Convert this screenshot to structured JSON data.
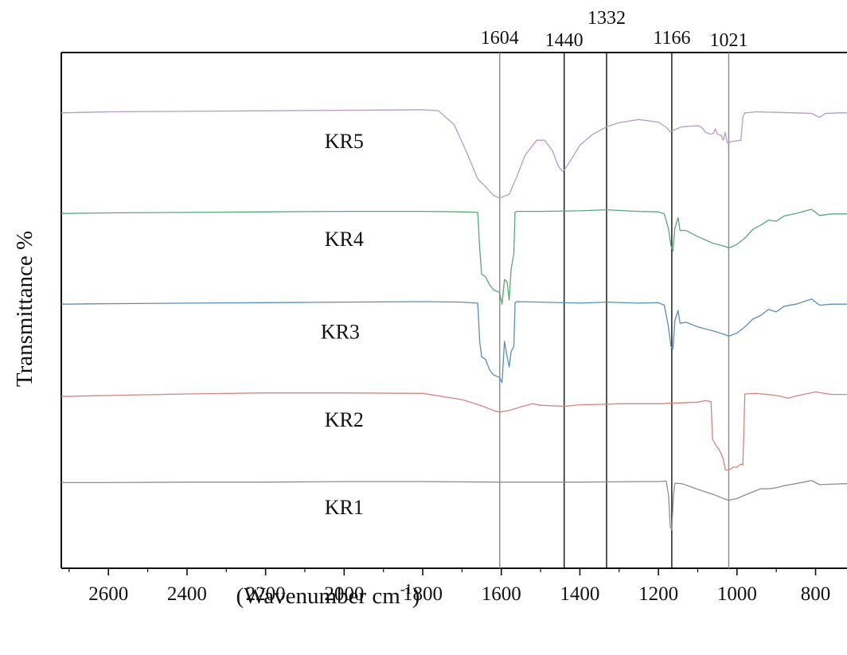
{
  "chart_data": {
    "type": "line",
    "title": "",
    "xlabel": "(Wavenumber cm",
    "xlabel_sup": "-1",
    "xlabel_close": ")",
    "ylabel": "Transmittance %",
    "xlim": [
      2720,
      720
    ],
    "x_reversed": true,
    "x_ticks": [
      2600,
      2400,
      2200,
      2000,
      1800,
      1600,
      1400,
      1200,
      1000,
      800
    ],
    "grid": false,
    "legend": "none",
    "y_units": "relative transmittance (offset stack, no y ticks)",
    "ylim": [
      0,
      100
    ],
    "reference_lines": [
      {
        "x": 1604,
        "label": "1604",
        "color": "#8a8a8a"
      },
      {
        "x": 1440,
        "label": "1440",
        "color": "#111111"
      },
      {
        "x": 1332,
        "label": "1332",
        "color": "#111111"
      },
      {
        "x": 1166,
        "label": "1166",
        "color": "#111111"
      },
      {
        "x": 1021,
        "label": "1021",
        "color": "#8a8a8a"
      }
    ],
    "series": [
      {
        "name": "KR5",
        "color": "#b69ac7",
        "points": [
          [
            2720,
            88.3
          ],
          [
            2600,
            88.5
          ],
          [
            2400,
            88.6
          ],
          [
            2200,
            88.7
          ],
          [
            2000,
            88.8
          ],
          [
            1800,
            88.9
          ],
          [
            1760,
            88.7
          ],
          [
            1720,
            86
          ],
          [
            1690,
            81
          ],
          [
            1660,
            75.5
          ],
          [
            1640,
            74
          ],
          [
            1620,
            72.3
          ],
          [
            1604,
            71.8
          ],
          [
            1580,
            72.5
          ],
          [
            1560,
            76
          ],
          [
            1540,
            80
          ],
          [
            1510,
            83
          ],
          [
            1490,
            83
          ],
          [
            1470,
            81
          ],
          [
            1455,
            78
          ],
          [
            1445,
            77
          ],
          [
            1440,
            77.2
          ],
          [
            1420,
            79.5
          ],
          [
            1400,
            82
          ],
          [
            1370,
            84
          ],
          [
            1332,
            85.6
          ],
          [
            1300,
            86.4
          ],
          [
            1250,
            87
          ],
          [
            1200,
            86.5
          ],
          [
            1180,
            85.5
          ],
          [
            1170,
            84.6
          ],
          [
            1160,
            85
          ],
          [
            1140,
            85.6
          ],
          [
            1100,
            85.8
          ],
          [
            1090,
            85.5
          ],
          [
            1080,
            84.5
          ],
          [
            1068,
            84.2
          ],
          [
            1060,
            84.3
          ],
          [
            1055,
            85.2
          ],
          [
            1050,
            84.2
          ],
          [
            1040,
            83.9
          ],
          [
            1035,
            83
          ],
          [
            1030,
            84.5
          ],
          [
            1025,
            82.5
          ],
          [
            1010,
            82.8
          ],
          [
            990,
            83
          ],
          [
            985,
            87.5
          ],
          [
            980,
            88.3
          ],
          [
            950,
            88.5
          ],
          [
            900,
            88.4
          ],
          [
            850,
            88.3
          ],
          [
            810,
            88.2
          ],
          [
            790,
            87.4
          ],
          [
            775,
            88.2
          ],
          [
            740,
            88.3
          ],
          [
            720,
            88.3
          ]
        ]
      },
      {
        "name": "KR4",
        "color": "#5aa77a",
        "points": [
          [
            2720,
            68.8
          ],
          [
            2600,
            68.9
          ],
          [
            2400,
            69
          ],
          [
            2200,
            69.1
          ],
          [
            2000,
            69.2
          ],
          [
            1800,
            69.2
          ],
          [
            1700,
            69.1
          ],
          [
            1660,
            69
          ],
          [
            1655,
            62
          ],
          [
            1650,
            57
          ],
          [
            1640,
            56.5
          ],
          [
            1630,
            55
          ],
          [
            1620,
            54
          ],
          [
            1605,
            53.5
          ],
          [
            1598,
            51.2
          ],
          [
            1592,
            56
          ],
          [
            1585,
            55.5
          ],
          [
            1580,
            52
          ],
          [
            1575,
            58
          ],
          [
            1568,
            61
          ],
          [
            1565,
            69
          ],
          [
            1560,
            69.2
          ],
          [
            1500,
            69.2
          ],
          [
            1400,
            69.3
          ],
          [
            1332,
            69.5
          ],
          [
            1250,
            69.2
          ],
          [
            1200,
            69.1
          ],
          [
            1185,
            68.7
          ],
          [
            1175,
            66
          ],
          [
            1168,
            62.5
          ],
          [
            1163,
            61.5
          ],
          [
            1158,
            66
          ],
          [
            1150,
            68
          ],
          [
            1145,
            65.5
          ],
          [
            1130,
            65.5
          ],
          [
            1100,
            64.3
          ],
          [
            1060,
            63
          ],
          [
            1030,
            62.4
          ],
          [
            1021,
            62.1
          ],
          [
            1000,
            62.8
          ],
          [
            980,
            64
          ],
          [
            960,
            65.7
          ],
          [
            940,
            66.5
          ],
          [
            920,
            67.5
          ],
          [
            900,
            67.3
          ],
          [
            880,
            68.3
          ],
          [
            850,
            68.8
          ],
          [
            810,
            69.6
          ],
          [
            790,
            68.4
          ],
          [
            760,
            68.7
          ],
          [
            720,
            68.7
          ]
        ]
      },
      {
        "name": "KR3",
        "color": "#5b8db8",
        "points": [
          [
            2720,
            51.2
          ],
          [
            2600,
            51.3
          ],
          [
            2400,
            51.4
          ],
          [
            2200,
            51.5
          ],
          [
            2000,
            51.6
          ],
          [
            1800,
            51.7
          ],
          [
            1700,
            51.6
          ],
          [
            1660,
            51.4
          ],
          [
            1655,
            44
          ],
          [
            1650,
            41
          ],
          [
            1640,
            40.5
          ],
          [
            1630,
            38.5
          ],
          [
            1620,
            37.5
          ],
          [
            1605,
            37
          ],
          [
            1598,
            36
          ],
          [
            1592,
            44
          ],
          [
            1585,
            41
          ],
          [
            1580,
            39
          ],
          [
            1575,
            42
          ],
          [
            1568,
            43
          ],
          [
            1565,
            51.5
          ],
          [
            1560,
            51.7
          ],
          [
            1500,
            51.6
          ],
          [
            1400,
            51.4
          ],
          [
            1332,
            51.6
          ],
          [
            1250,
            51.4
          ],
          [
            1200,
            51.5
          ],
          [
            1185,
            51
          ],
          [
            1175,
            47
          ],
          [
            1168,
            43
          ],
          [
            1163,
            42.5
          ],
          [
            1158,
            48
          ],
          [
            1150,
            50
          ],
          [
            1145,
            47.5
          ],
          [
            1130,
            47.7
          ],
          [
            1100,
            46.8
          ],
          [
            1060,
            46
          ],
          [
            1030,
            45.3
          ],
          [
            1021,
            45
          ],
          [
            1000,
            45.6
          ],
          [
            980,
            46.8
          ],
          [
            960,
            48.3
          ],
          [
            940,
            49
          ],
          [
            920,
            50.2
          ],
          [
            900,
            49.7
          ],
          [
            880,
            50.8
          ],
          [
            850,
            51.2
          ],
          [
            810,
            52.2
          ],
          [
            790,
            51
          ],
          [
            760,
            51.2
          ],
          [
            720,
            51.2
          ]
        ]
      },
      {
        "name": "KR2",
        "color": "#d4857c",
        "points": [
          [
            2720,
            33.3
          ],
          [
            2600,
            33.5
          ],
          [
            2400,
            33.8
          ],
          [
            2200,
            34
          ],
          [
            2000,
            34
          ],
          [
            1800,
            33.9
          ],
          [
            1700,
            32.7
          ],
          [
            1650,
            31.5
          ],
          [
            1620,
            30.6
          ],
          [
            1604,
            30.3
          ],
          [
            1580,
            30.6
          ],
          [
            1550,
            31.3
          ],
          [
            1520,
            31.9
          ],
          [
            1500,
            31.6
          ],
          [
            1440,
            31.4
          ],
          [
            1400,
            31.7
          ],
          [
            1332,
            31.8
          ],
          [
            1300,
            31.9
          ],
          [
            1200,
            31.9
          ],
          [
            1100,
            32.2
          ],
          [
            1080,
            32.5
          ],
          [
            1066,
            32.3
          ],
          [
            1062,
            25
          ],
          [
            1055,
            24
          ],
          [
            1048,
            23.3
          ],
          [
            1040,
            22.2
          ],
          [
            1035,
            21.2
          ],
          [
            1030,
            19.1
          ],
          [
            1021,
            19
          ],
          [
            1010,
            19.6
          ],
          [
            1000,
            19.6
          ],
          [
            990,
            20.2
          ],
          [
            985,
            20
          ],
          [
            980,
            33.8
          ],
          [
            950,
            33.9
          ],
          [
            900,
            33.5
          ],
          [
            870,
            33
          ],
          [
            850,
            33.4
          ],
          [
            800,
            34.2
          ],
          [
            760,
            33.7
          ],
          [
            720,
            33.7
          ]
        ]
      },
      {
        "name": "KR1",
        "color": "#8e8e8e",
        "points": [
          [
            2720,
            16.6
          ],
          [
            2600,
            16.6
          ],
          [
            2400,
            16.7
          ],
          [
            2200,
            16.7
          ],
          [
            2000,
            16.8
          ],
          [
            1800,
            16.8
          ],
          [
            1600,
            16.7
          ],
          [
            1400,
            16.7
          ],
          [
            1250,
            16.8
          ],
          [
            1200,
            16.8
          ],
          [
            1180,
            16.9
          ],
          [
            1174,
            14
          ],
          [
            1170,
            8
          ],
          [
            1166,
            7.5
          ],
          [
            1162,
            14
          ],
          [
            1158,
            16.5
          ],
          [
            1140,
            16.4
          ],
          [
            1100,
            15.3
          ],
          [
            1060,
            14.3
          ],
          [
            1030,
            13.4
          ],
          [
            1021,
            13.2
          ],
          [
            1000,
            13.5
          ],
          [
            980,
            14.2
          ],
          [
            960,
            14.8
          ],
          [
            940,
            15.4
          ],
          [
            920,
            15.4
          ],
          [
            900,
            15.6
          ],
          [
            880,
            16
          ],
          [
            850,
            16.4
          ],
          [
            810,
            17
          ],
          [
            790,
            16.2
          ],
          [
            760,
            16.3
          ],
          [
            720,
            16.4
          ]
        ]
      }
    ]
  }
}
